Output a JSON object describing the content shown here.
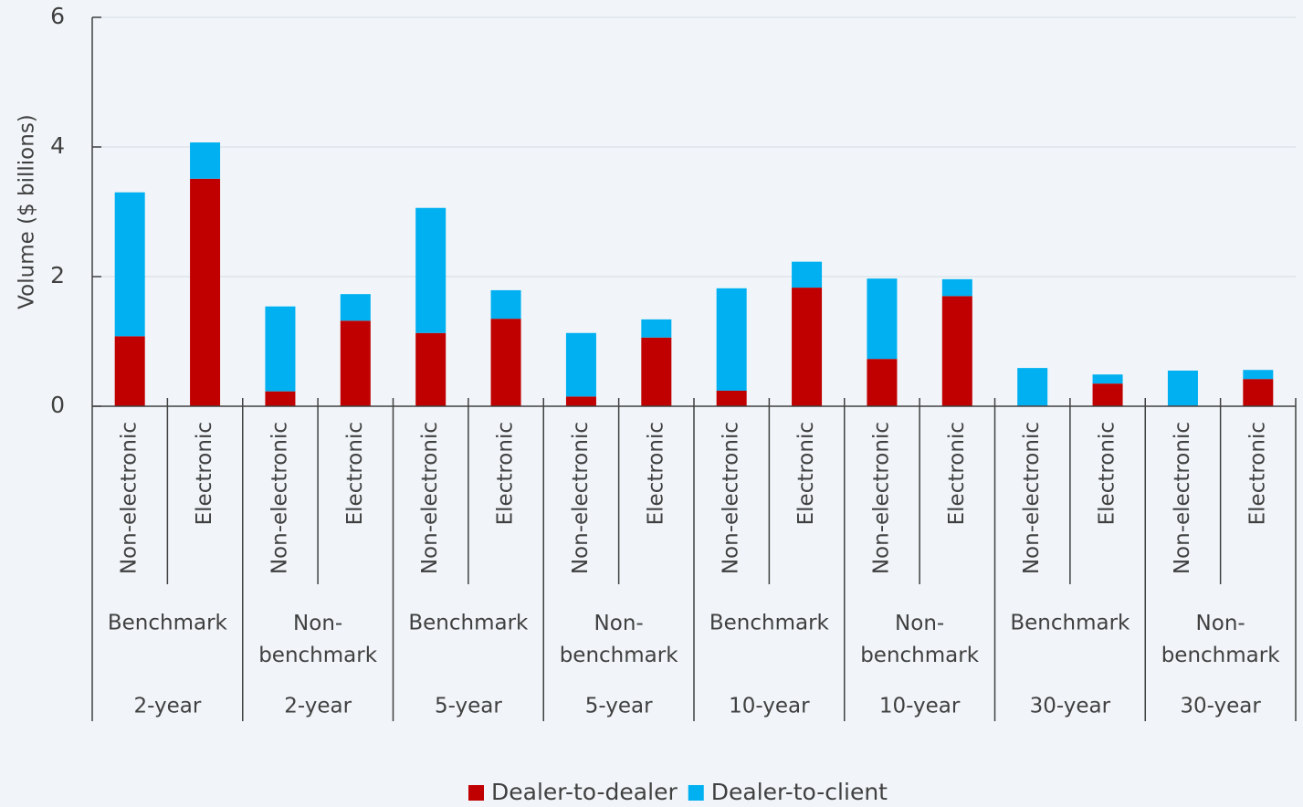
{
  "chart_data": {
    "type": "stacked_bar",
    "y_axis_label": "Volume ($ billions)",
    "categories": [
      "Non-electronic",
      "Electronic",
      "Non-electronic",
      "Electronic",
      "Non-electronic",
      "Electronic",
      "Non-electronic",
      "Electronic",
      "Non-electronic",
      "Electronic",
      "Non-electronic",
      "Electronic",
      "Non-electronic",
      "Electronic",
      "Non-electronic",
      "Electronic"
    ],
    "category_groups": [
      "Benchmark",
      "Non-benchmark",
      "Benchmark",
      "Non-benchmark",
      "Benchmark",
      "Non-benchmark",
      "Benchmark",
      "Non-benchmark"
    ],
    "category_terms": [
      "2-year",
      "2-year",
      "5-year",
      "5-year",
      "10-year",
      "10-year",
      "30-year",
      "30-year"
    ],
    "series": [
      {
        "name": "Dealer-to-dealer",
        "color": "#c00000",
        "values": [
          1.08,
          3.51,
          0.23,
          1.32,
          1.13,
          1.35,
          0.15,
          1.06,
          0.24,
          1.83,
          0.73,
          1.7,
          0.01,
          0.35,
          0.01,
          0.42
        ]
      },
      {
        "name": "Dealer-to-client",
        "color": "#00b0f0",
        "values": [
          2.22,
          0.56,
          1.31,
          0.41,
          1.93,
          0.44,
          0.98,
          0.28,
          1.58,
          0.4,
          1.24,
          0.26,
          0.58,
          0.14,
          0.54,
          0.14
        ]
      }
    ],
    "ylim": [
      0,
      6
    ],
    "yticks": [
      0,
      2,
      4,
      6
    ],
    "grid": true,
    "legend": "bottom"
  }
}
